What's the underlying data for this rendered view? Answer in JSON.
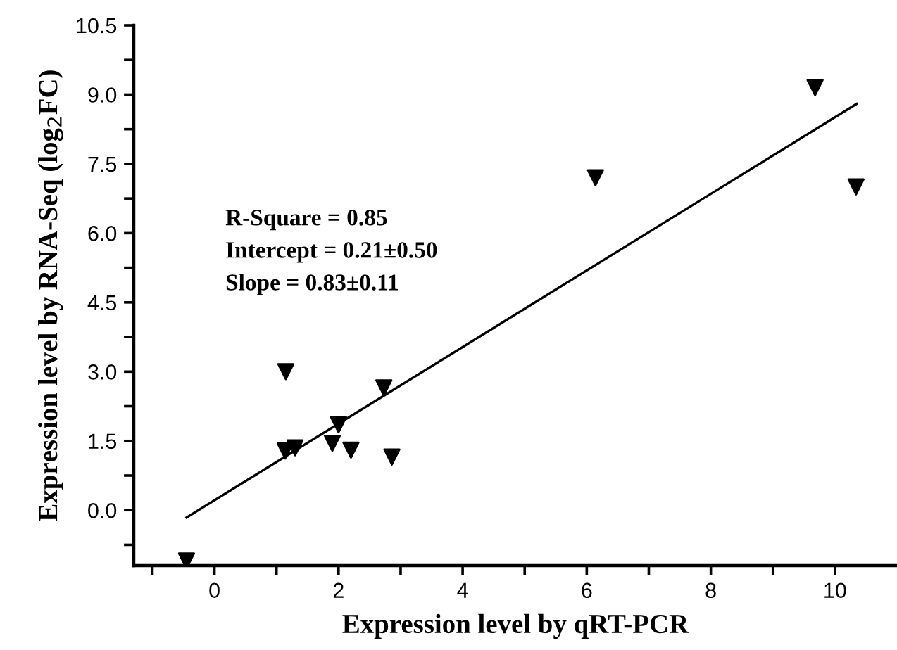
{
  "chart_data": {
    "type": "scatter",
    "xlabel": "Expression level by qRT-PCR",
    "ylabel": "Expression level by RNA-Seq (log$_{2}$FC)",
    "annotations": [
      "R-Square = 0.85",
      "Intercept = 0.21±0.50",
      "Slope = 0.83±0.11"
    ],
    "series": [
      {
        "color": "#000000",
        "marker": "triangle",
        "x": [
          -0.45,
          1.15,
          1.14,
          1.3,
          1.9,
          2.0,
          2.2,
          2.73,
          2.86,
          6.14,
          9.68,
          10.34
        ],
        "values": [
          -1.1,
          3.0,
          1.28,
          1.35,
          1.45,
          1.85,
          1.3,
          2.65,
          1.15,
          7.2,
          9.15,
          7.0
        ]
      },
      {
        "type": "line",
        "color": "#000000",
        "line_style": "solid",
        "x": [
          -0.45,
          10.35
        ],
        "values": [
          -0.16,
          8.8
        ]
      }
    ],
    "xlim": [
      -1.3,
      11
    ],
    "ylim": [
      -1.2,
      10.5
    ],
    "xticks": [
      {
        "value": -1,
        "label": null
      },
      0,
      {
        "value": 1,
        "label": null
      },
      2,
      {
        "value": 3,
        "label": null
      },
      4,
      {
        "value": 5,
        "label": null
      },
      6,
      {
        "value": 7,
        "label": null
      },
      8,
      {
        "value": 9,
        "label": null
      },
      10
    ],
    "yticks": [
      {
        "value": -0.75,
        "label": null
      },
      {
        "value": 0,
        "label": "0.0"
      },
      {
        "value": 0.75,
        "label": null
      },
      1.5,
      {
        "value": 2.25,
        "label": null
      },
      {
        "value": 3,
        "label": "3.0"
      },
      {
        "value": 3.75,
        "label": null
      },
      4.5,
      {
        "value": 5.25,
        "label": null
      },
      {
        "value": 6,
        "label": "6.0"
      },
      {
        "value": 6.75,
        "label": null
      },
      7.5,
      {
        "value": 8.25,
        "label": null
      },
      {
        "value": 9,
        "label": "9.0"
      },
      {
        "value": 9.75,
        "label": null
      },
      10.5
    ],
    "grid": false,
    "legend": false
  }
}
